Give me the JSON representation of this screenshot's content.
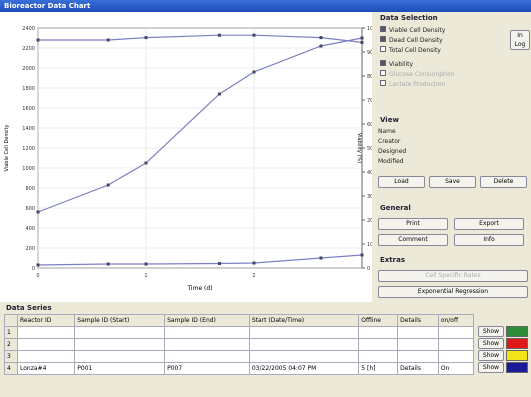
{
  "window": {
    "title": "Bioreactor Data Chart"
  },
  "chart": {
    "type": "line",
    "x_label": "Time (d)",
    "y_label": "Viable Cell Density",
    "y2_label": "Viability (%)",
    "xlim": [
      0,
      3
    ],
    "xticks": [
      0,
      1,
      2
    ],
    "ylim": [
      0,
      2400
    ],
    "yticks": [
      0,
      200,
      400,
      600,
      800,
      1000,
      1200,
      1400,
      1600,
      1800,
      2000,
      2200,
      2400
    ],
    "y2lim": [
      0,
      100
    ],
    "y2ticks": [
      0,
      10,
      20,
      30,
      40,
      50,
      60,
      70,
      80,
      90,
      100
    ],
    "grid": true,
    "x": [
      0,
      0.65,
      1,
      1.68,
      2,
      2.62,
      3
    ],
    "series": [
      {
        "name": "Viable Cell Density",
        "color": "#7b7fc4",
        "axis": "y",
        "values": [
          560,
          830,
          1050,
          1740,
          1960,
          2220,
          2300
        ]
      },
      {
        "name": "Dead Cell Density",
        "color": "#7b7fc4",
        "axis": "y",
        "values": [
          30,
          40,
          40,
          45,
          50,
          100,
          130
        ]
      },
      {
        "name": "Viability",
        "color": "#7b7fc4",
        "axis": "y2",
        "values": [
          95,
          95,
          96,
          97,
          97,
          96,
          94
        ]
      }
    ]
  },
  "data_selection": {
    "title": "Data Selection",
    "extra": [
      "Total Cell Density"
    ],
    "disabled": [
      "Glucose Consumption",
      "Lactate Production"
    ],
    "log_button": "In Log"
  },
  "view": {
    "title": "View",
    "fields": [
      "Name",
      "Creator",
      "Designed",
      "Modified"
    ],
    "buttons": [
      "Load",
      "Save",
      "Delete"
    ]
  },
  "general": {
    "title": "General",
    "buttons": [
      "Print",
      "Export",
      "Comment",
      "Info"
    ]
  },
  "extras": {
    "title": "Extras",
    "buttons": [
      "Cell Specific Rates",
      "Exponential Regression"
    ]
  },
  "data_series": {
    "title": "Data Series",
    "headers": [
      "Reactor ID",
      "Sample ID (Start)",
      "Sample ID (End)",
      "Start (Date/Time)",
      "Offline",
      "Details",
      "on/off"
    ],
    "show_label": "Show",
    "rows": [
      {
        "number": "1",
        "color": "#2e8b3a"
      },
      {
        "number": "2",
        "color": "#e01818"
      },
      {
        "number": "3",
        "color": "#f2e21a"
      },
      {
        "number": "4",
        "color": "#1a1a9a",
        "cells": [
          "Lonza#4",
          "P001",
          "P007",
          "03/22/2005 04:07 PM",
          "5 [h]",
          "Details",
          "On"
        ]
      }
    ]
  }
}
